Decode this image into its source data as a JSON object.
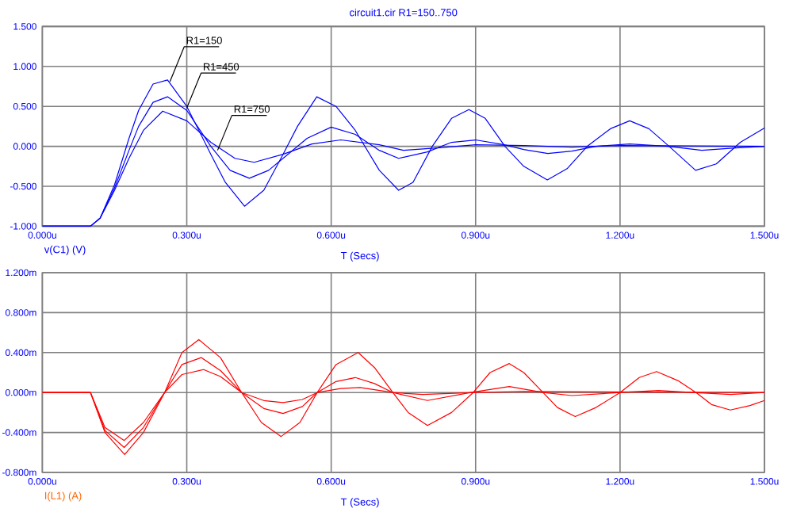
{
  "chart_data": [
    {
      "type": "line",
      "title": "circuit1.cir R1=150..750",
      "xlabel": "T (Secs)",
      "xlim": [
        0,
        1.5
      ],
      "ylim": [
        -1.0,
        1.5
      ],
      "xticks": [
        {
          "value": 0,
          "label": "0.000u"
        },
        {
          "value": 0.3,
          "label": "0.300u"
        },
        {
          "value": 0.6,
          "label": "0.600u"
        },
        {
          "value": 0.9,
          "label": "0.900u"
        },
        {
          "value": 1.2,
          "label": "1.200u"
        },
        {
          "value": 1.5,
          "label": "1.500u"
        }
      ],
      "yticks": [
        {
          "value": -1.0,
          "label": "-1.000"
        },
        {
          "value": -0.5,
          "label": "-0.500"
        },
        {
          "value": 0,
          "label": "0.000"
        },
        {
          "value": 0.5,
          "label": "0.500"
        },
        {
          "value": 1.0,
          "label": "1.000"
        },
        {
          "value": 1.5,
          "label": "1.500"
        }
      ],
      "grid": true,
      "marker": "none",
      "annotations": [
        "v(C1) (V)",
        {
          "text": "R1=150",
          "x": 0.265,
          "y": 0.81
        },
        {
          "text": "R1=450",
          "x": 0.3,
          "y": 0.48
        },
        {
          "text": "R1=750",
          "x": 0.364,
          "y": -0.05
        }
      ],
      "series": [
        {
          "color": "#0000ff",
          "x": [
            0,
            0.1,
            0.12,
            0.15,
            0.18,
            0.2,
            0.23,
            0.26,
            0.3,
            0.35,
            0.38,
            0.42,
            0.46,
            0.5,
            0.53,
            0.57,
            0.61,
            0.65,
            0.7,
            0.74,
            0.77,
            0.81,
            0.85,
            0.886,
            0.92,
            0.961,
            1.0,
            1.049,
            1.09,
            1.132,
            1.18,
            1.22,
            1.26,
            1.302,
            1.357,
            1.4,
            1.45,
            1.5
          ],
          "values": [
            -1,
            -1,
            -0.9,
            -0.48,
            0.1,
            0.45,
            0.78,
            0.83,
            0.5,
            -0.1,
            -0.45,
            -0.75,
            -0.55,
            -0.1,
            0.25,
            0.62,
            0.5,
            0.2,
            -0.3,
            -0.55,
            -0.45,
            0,
            0.35,
            0.46,
            0.35,
            0,
            -0.25,
            -0.42,
            -0.28,
            0,
            0.22,
            0.32,
            0.22,
            0,
            -0.3,
            -0.22,
            0.05,
            0.23
          ]
        },
        {
          "color": "#0000ff",
          "x": [
            0,
            0.1,
            0.12,
            0.15,
            0.18,
            0.2,
            0.23,
            0.26,
            0.3,
            0.35,
            0.39,
            0.43,
            0.47,
            0.51,
            0.55,
            0.6,
            0.65,
            0.7,
            0.74,
            0.8,
            0.85,
            0.9,
            0.96,
            1.0,
            1.05,
            1.1,
            1.15,
            1.22,
            1.3,
            1.37,
            1.44,
            1.5
          ],
          "values": [
            -1,
            -1,
            -0.9,
            -0.52,
            -0.05,
            0.25,
            0.55,
            0.62,
            0.45,
            0.0,
            -0.3,
            -0.4,
            -0.3,
            -0.1,
            0.1,
            0.24,
            0.15,
            -0.05,
            -0.15,
            -0.07,
            0.05,
            0.08,
            0.02,
            -0.04,
            -0.09,
            -0.06,
            0,
            0.03,
            0,
            -0.05,
            -0.02,
            0
          ]
        },
        {
          "color": "#0000ff",
          "x": [
            0,
            0.1,
            0.12,
            0.15,
            0.18,
            0.21,
            0.25,
            0.3,
            0.35,
            0.4,
            0.44,
            0.5,
            0.56,
            0.62,
            0.7,
            0.75,
            0.82,
            0.9,
            1.0,
            1.1,
            1.2,
            1.5
          ],
          "values": [
            -1,
            -1,
            -0.9,
            -0.55,
            -0.15,
            0.2,
            0.44,
            0.32,
            0.05,
            -0.15,
            -0.2,
            -0.1,
            0.03,
            0.08,
            0.02,
            -0.05,
            -0.02,
            0.02,
            0.01,
            -0.01,
            0.01,
            0.0
          ]
        }
      ]
    },
    {
      "type": "line",
      "xlabel": "T (Secs)",
      "annotations": [
        "I(L1) (A)"
      ],
      "xlim": [
        0,
        1.5
      ],
      "ylim": [
        -0.8,
        1.2
      ],
      "xticks": [
        {
          "value": 0,
          "label": "0.000u"
        },
        {
          "value": 0.3,
          "label": "0.300u"
        },
        {
          "value": 0.6,
          "label": "0.600u"
        },
        {
          "value": 0.9,
          "label": "0.900u"
        },
        {
          "value": 1.2,
          "label": "1.200u"
        },
        {
          "value": 1.5,
          "label": "1.500u"
        }
      ],
      "yticks": [
        {
          "value": -0.8,
          "label": "-0.800m"
        },
        {
          "value": -0.4,
          "label": "-0.400m"
        },
        {
          "value": 0,
          "label": "0.000m"
        },
        {
          "value": 0.4,
          "label": "0.400m"
        },
        {
          "value": 0.8,
          "label": "0.800m"
        },
        {
          "value": 1.2,
          "label": "1.200m"
        }
      ],
      "grid": true,
      "marker": "none",
      "series": [
        {
          "color": "#ff0000",
          "x": [
            0,
            0.1,
            0.13,
            0.171,
            0.21,
            0.254,
            0.29,
            0.325,
            0.37,
            0.414,
            0.455,
            0.496,
            0.535,
            0.571,
            0.61,
            0.656,
            0.69,
            0.728,
            0.76,
            0.8,
            0.85,
            0.895,
            0.93,
            0.97,
            1.0,
            1.04,
            1.07,
            1.107,
            1.15,
            1.2,
            1.24,
            1.276,
            1.32,
            1.358,
            1.39,
            1.429,
            1.47,
            1.5
          ],
          "values": [
            0,
            0,
            -0.4,
            -0.62,
            -0.4,
            0,
            0.4,
            0.53,
            0.35,
            0,
            -0.3,
            -0.44,
            -0.3,
            0,
            0.28,
            0.4,
            0.25,
            0,
            -0.2,
            -0.33,
            -0.2,
            0,
            0.2,
            0.29,
            0.2,
            0,
            -0.15,
            -0.24,
            -0.15,
            0,
            0.15,
            0.21,
            0.12,
            0,
            -0.12,
            -0.175,
            -0.13,
            -0.08
          ]
        },
        {
          "color": "#ff0000",
          "x": [
            0,
            0.1,
            0.13,
            0.17,
            0.21,
            0.254,
            0.29,
            0.33,
            0.37,
            0.414,
            0.46,
            0.5,
            0.54,
            0.571,
            0.61,
            0.65,
            0.69,
            0.728,
            0.8,
            0.89,
            0.97,
            1.04,
            1.1,
            1.2,
            1.28,
            1.35,
            1.43,
            1.5
          ],
          "values": [
            0,
            0,
            -0.38,
            -0.55,
            -0.35,
            0,
            0.28,
            0.35,
            0.22,
            0,
            -0.16,
            -0.21,
            -0.14,
            0,
            0.11,
            0.15,
            0.09,
            0,
            -0.08,
            0,
            0.06,
            0,
            -0.03,
            0,
            0.02,
            0,
            -0.02,
            0
          ]
        },
        {
          "color": "#ff0000",
          "x": [
            0,
            0.1,
            0.13,
            0.17,
            0.21,
            0.254,
            0.29,
            0.335,
            0.37,
            0.414,
            0.46,
            0.5,
            0.54,
            0.571,
            0.62,
            0.66,
            0.728,
            0.79,
            0.9,
            1.0,
            1.5
          ],
          "values": [
            0,
            0,
            -0.35,
            -0.48,
            -0.3,
            0,
            0.18,
            0.23,
            0.16,
            0,
            -0.08,
            -0.1,
            -0.07,
            0,
            0.04,
            0.05,
            0,
            -0.02,
            0,
            0.01,
            0
          ]
        }
      ]
    }
  ]
}
